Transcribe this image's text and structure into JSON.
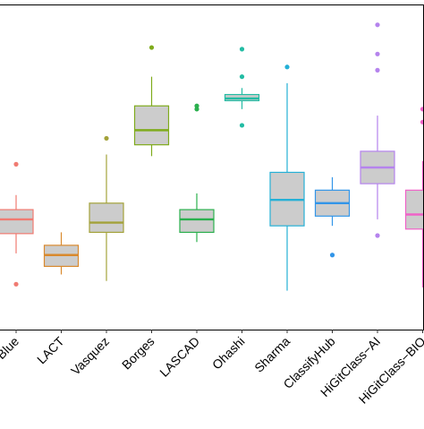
{
  "chart_data": {
    "type": "box",
    "title": "",
    "xlabel": "",
    "ylabel": "",
    "ylim": [
      0,
      10
    ],
    "grid": false,
    "legend": "none",
    "box_fill": "#cccccc",
    "categories": [
      "Blue",
      "LACT",
      "Vasquez",
      "Borges",
      "LASCAD",
      "Ohashi",
      "Sharma",
      "ClassifyHub",
      "HiGitClass−AI",
      "HiGitClass−BIO"
    ],
    "boxes": [
      {
        "category": "Blue",
        "color": "#f07b72",
        "whisker_low": 2.35,
        "q1": 2.96,
        "median": 3.4,
        "q3": 3.7,
        "whisker_high": 4.15,
        "outliers": [
          1.4,
          5.1
        ]
      },
      {
        "category": "LACT",
        "color": "#d9892d",
        "whisker_low": 1.7,
        "q1": 1.95,
        "median": 2.3,
        "q3": 2.6,
        "whisker_high": 3.0,
        "outliers": []
      },
      {
        "category": "Vasquez",
        "color": "#a3a23a",
        "whisker_low": 1.5,
        "q1": 3.0,
        "median": 3.3,
        "q3": 3.9,
        "whisker_high": 5.4,
        "outliers": [
          5.9
        ]
      },
      {
        "category": "Borges",
        "color": "#7fab1c",
        "whisker_low": 5.35,
        "q1": 5.7,
        "median": 6.15,
        "q3": 6.9,
        "whisker_high": 7.8,
        "outliers": [
          8.7
        ]
      },
      {
        "category": "LASCAD",
        "color": "#2bb04e",
        "whisker_low": 2.7,
        "q1": 3.0,
        "median": 3.4,
        "q3": 3.7,
        "whisker_high": 4.2,
        "outliers": [
          6.8,
          6.9
        ]
      },
      {
        "category": "Ohashi",
        "color": "#23bca4",
        "whisker_low": 6.8,
        "q1": 7.06,
        "median": 7.13,
        "q3": 7.25,
        "whisker_high": 7.45,
        "outliers": [
          6.3,
          7.8,
          8.65
        ]
      },
      {
        "category": "Sharma",
        "color": "#25b0d6",
        "whisker_low": 1.2,
        "q1": 3.2,
        "median": 4.0,
        "q3": 4.85,
        "whisker_high": 7.6,
        "outliers": [
          8.1
        ]
      },
      {
        "category": "ClassifyHub",
        "color": "#3295e8",
        "whisker_low": 3.2,
        "q1": 3.5,
        "median": 3.9,
        "q3": 4.3,
        "whisker_high": 4.7,
        "outliers": [
          2.3
        ]
      },
      {
        "category": "HiGitClass−AI",
        "color": "#b583ed",
        "whisker_low": 3.4,
        "q1": 4.5,
        "median": 5.0,
        "q3": 5.5,
        "whisker_high": 6.6,
        "outliers": [
          2.9,
          8.0,
          8.5,
          9.4
        ]
      },
      {
        "category": "HiGitClass−BIO",
        "color": "#f062c8",
        "whisker_low": 1.3,
        "q1": 3.1,
        "median": 3.55,
        "q3": 4.3,
        "whisker_high": 5.2,
        "outliers": [
          6.4,
          6.8
        ]
      }
    ]
  }
}
